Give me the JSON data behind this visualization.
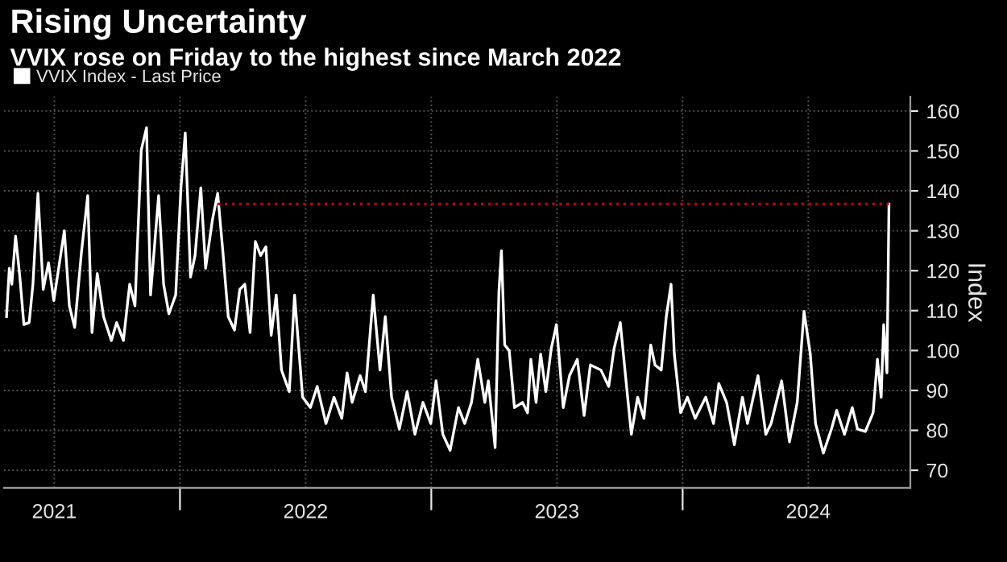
{
  "chart_data": {
    "type": "line",
    "title": "Rising Uncertainty",
    "subtitle": "VVIX rose on Friday to the highest since March 2022",
    "ylabel": "Index",
    "x": [
      2021.31,
      2021.321,
      2021.331,
      2021.346,
      2021.363,
      2021.379,
      2021.4,
      2021.415,
      2021.435,
      2021.456,
      2021.477,
      2021.498,
      2021.54,
      2021.56,
      2021.581,
      2021.608,
      2021.633,
      2021.65,
      2021.671,
      2021.696,
      2021.727,
      2021.748,
      2021.775,
      2021.8,
      2021.821,
      2021.846,
      2021.867,
      2021.883,
      2021.915,
      2021.935,
      2021.956,
      2021.983,
      2022.004,
      2022.021,
      2022.042,
      2022.06,
      2022.083,
      2022.102,
      2022.129,
      2022.15,
      2022.171,
      2022.192,
      2022.217,
      2022.238,
      2022.258,
      2022.279,
      2022.3,
      2022.321,
      2022.342,
      2022.363,
      2022.383,
      2022.404,
      2022.435,
      2022.456,
      2022.488,
      2022.519,
      2022.546,
      2022.581,
      2022.613,
      2022.644,
      2022.665,
      2022.685,
      2022.717,
      2022.738,
      2022.769,
      2022.796,
      2022.817,
      2022.842,
      2022.873,
      2022.904,
      2022.935,
      2022.967,
      2022.998,
      2023.019,
      2023.046,
      2023.075,
      2023.108,
      2023.133,
      2023.16,
      2023.185,
      2023.213,
      2023.227,
      2023.254,
      2023.269,
      2023.279,
      2023.292,
      2023.31,
      2023.331,
      2023.363,
      2023.383,
      2023.396,
      2023.417,
      2023.435,
      2023.456,
      2023.477,
      2023.498,
      2023.525,
      2023.55,
      2023.581,
      2023.608,
      2023.633,
      2023.675,
      2023.706,
      2023.727,
      2023.752,
      2023.779,
      2023.796,
      2023.821,
      2023.846,
      2023.873,
      2023.89,
      2023.915,
      2023.935,
      2023.954,
      2023.967,
      2023.992,
      2024.019,
      2024.05,
      2024.092,
      2024.123,
      2024.144,
      2024.175,
      2024.206,
      2024.238,
      2024.258,
      2024.3,
      2024.331,
      2024.352,
      2024.394,
      2024.425,
      2024.456,
      2024.483,
      2024.508,
      2024.529,
      2024.56,
      2024.592,
      2024.613,
      2024.644,
      2024.675,
      2024.696,
      2024.727,
      2024.758,
      2024.775,
      2024.79,
      2024.8,
      2024.813,
      2024.821
    ],
    "series": [
      {
        "name": "VVIX Index - Last Price",
        "color": "#ffffff",
        "values": [
          108.5,
          120.6,
          116.6,
          128.7,
          118.4,
          106.5,
          107,
          116.6,
          139.4,
          115.3,
          122,
          112.5,
          130,
          111.2,
          105.8,
          124.6,
          138.8,
          104.5,
          119.3,
          108.5,
          102.5,
          107,
          102.5,
          116.6,
          111.2,
          150.2,
          155.8,
          113.9,
          138.8,
          116.6,
          109.2,
          113.9,
          140.8,
          154.5,
          118.4,
          123.8,
          140.8,
          120.6,
          132.7,
          139.4,
          124.6,
          108.5,
          105.1,
          115.3,
          116.6,
          104.5,
          127.3,
          123.8,
          126,
          103.8,
          113.9,
          95.1,
          89.7,
          113.9,
          88.3,
          85.7,
          91,
          81.7,
          88.3,
          83,
          94.4,
          87,
          93.7,
          89.7,
          113.9,
          95.1,
          108.5,
          88.3,
          80.3,
          89.7,
          79,
          87,
          81.7,
          92.4,
          79,
          75,
          85.7,
          81.7,
          87,
          97.8,
          87,
          92.4,
          75.7,
          114.6,
          125,
          101.4,
          100,
          85.7,
          87,
          84.4,
          97.8,
          87,
          99.1,
          89.7,
          100.4,
          106.5,
          85.7,
          93.7,
          97.8,
          83.7,
          96.4,
          95.1,
          91,
          100.4,
          107,
          89.7,
          79,
          88.3,
          83,
          101.4,
          96.4,
          95.1,
          108.5,
          116.6,
          99.1,
          84.4,
          88.3,
          83,
          88.3,
          81.7,
          91.7,
          87,
          76.4,
          88.3,
          81.7,
          93.7,
          79,
          81.7,
          92.4,
          77.1,
          87,
          109.8,
          99.1,
          81.7,
          74.3,
          80.3,
          85,
          79,
          85.7,
          80.3,
          79.7,
          84.4,
          97.8,
          88.3,
          106.5,
          94.4,
          136.7
        ]
      }
    ],
    "xlim": [
      2021.3,
      2024.906
    ],
    "xticks": [
      {
        "value": 2021.5,
        "label": "2021"
      },
      {
        "value": 2022,
        "label": null
      },
      {
        "value": 2022.5,
        "label": "2022"
      },
      {
        "value": 2023,
        "label": null
      },
      {
        "value": 2023.5,
        "label": "2023"
      },
      {
        "value": 2024,
        "label": null
      },
      {
        "value": 2024.5,
        "label": "2024"
      }
    ],
    "ylim": [
      65.6,
      163.6
    ],
    "yticks": [
      70,
      80,
      90,
      100,
      110,
      120,
      130,
      140,
      150,
      160
    ],
    "ref_lines": [
      {
        "axis": "y",
        "value": 136.7,
        "color": "#c00000",
        "line_style": "dotted"
      }
    ],
    "grid": true,
    "legend": "top left",
    "line_style": "solid",
    "marker": "none"
  }
}
